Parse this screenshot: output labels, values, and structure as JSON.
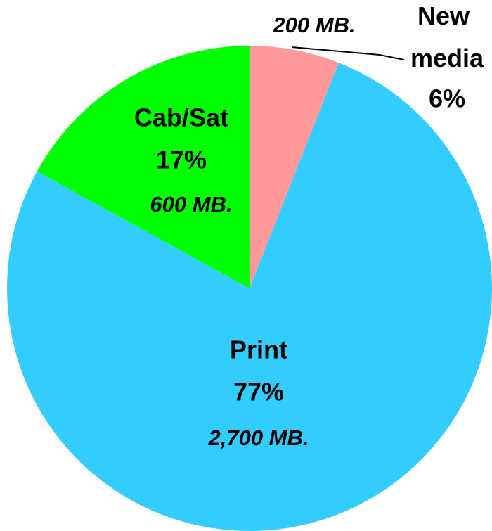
{
  "chart_data": {
    "type": "pie",
    "categories": [
      "New media",
      "Print",
      "Cab/Sat"
    ],
    "values": [
      6,
      77,
      17
    ],
    "value_labels": [
      "6%",
      "77%",
      "17%"
    ],
    "size_labels": [
      "200 MB.",
      "2,700 MB.",
      "600 MB."
    ],
    "colors": [
      "#ff9999",
      "#33ccff",
      "#00ff00"
    ]
  }
}
